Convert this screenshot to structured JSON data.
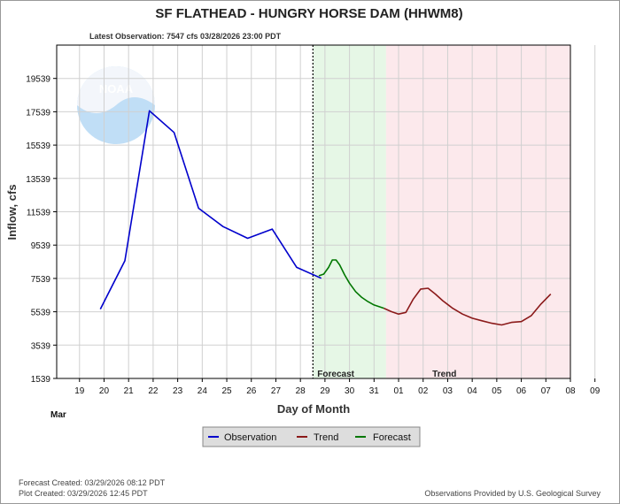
{
  "chart_data": {
    "type": "line",
    "title": "SF FLATHEAD - HUNGRY HORSE DAM  (HHWM8)",
    "subtitle": "Latest Observation: 7547 cfs 03/28/2026 23:00 PDT",
    "ylabel": "Inflow, cfs",
    "xlabel": "Day of Month",
    "month_label": "Mar",
    "ylim": [
      1539,
      21539
    ],
    "y_ticks": [
      1539,
      3539,
      5539,
      7539,
      9539,
      11539,
      13539,
      15539,
      17539,
      19539
    ],
    "x_ticks": [
      "19",
      "20",
      "21",
      "22",
      "23",
      "24",
      "25",
      "26",
      "27",
      "28",
      "29",
      "30",
      "31",
      "01",
      "02",
      "03",
      "04",
      "05",
      "06",
      "07",
      "08",
      "09"
    ],
    "xlim": [
      -0.93,
      20
    ],
    "grid": true,
    "observation_end": 9.51,
    "forecast_region": {
      "label": "Forecast",
      "start": 9.51,
      "end": 12.49,
      "color": "#e6f7e6"
    },
    "trend_region": {
      "label": "Trend",
      "start": 12.49,
      "end": 20,
      "color": "#fce9ec"
    },
    "series": [
      {
        "name": "Observation",
        "color": "#0000cc",
        "x": [
          0.85,
          1.85,
          2.85,
          3.85,
          4.85,
          5.85,
          6.85,
          7.85,
          8.85,
          9.85
        ],
        "y": [
          5700,
          8600,
          17600,
          16300,
          11750,
          10650,
          9950,
          10500,
          8200,
          7547
        ]
      },
      {
        "name": "Forecast",
        "color": "#007700",
        "x": [
          9.75,
          9.95,
          10.15,
          10.3,
          10.45,
          10.6,
          10.8,
          11.0,
          11.25,
          11.5,
          11.75,
          12.0,
          12.2,
          12.4
        ],
        "y": [
          7700,
          7800,
          8200,
          8650,
          8650,
          8350,
          7750,
          7250,
          6750,
          6400,
          6150,
          5950,
          5850,
          5750
        ]
      },
      {
        "name": "Trend",
        "color": "#8b1a1a",
        "x": [
          12.4,
          12.7,
          13.0,
          13.3,
          13.6,
          13.9,
          14.2,
          14.5,
          14.8,
          15.2,
          15.6,
          16.0,
          16.4,
          16.8,
          17.2,
          17.6,
          18.0,
          18.4,
          18.8,
          19.2
        ],
        "y": [
          5750,
          5550,
          5400,
          5500,
          6300,
          6900,
          6950,
          6600,
          6200,
          5750,
          5400,
          5150,
          5000,
          4850,
          4750,
          4900,
          4950,
          5300,
          6000,
          6600
        ]
      }
    ],
    "legend": {
      "placement": "bottom-center",
      "entries": [
        "Observation",
        "Trend",
        "Forecast"
      ]
    }
  },
  "footer": {
    "forecast_created": "Forecast Created: 03/29/2026 08:12 PDT",
    "plot_created": "Plot Created: 03/29/2026 12:45 PDT",
    "credit": "Observations Provided by U.S. Geological Survey"
  },
  "logo": {
    "name": "NOAA"
  },
  "colors": {
    "grid": "#d0d0d0",
    "frame": "#000000"
  }
}
